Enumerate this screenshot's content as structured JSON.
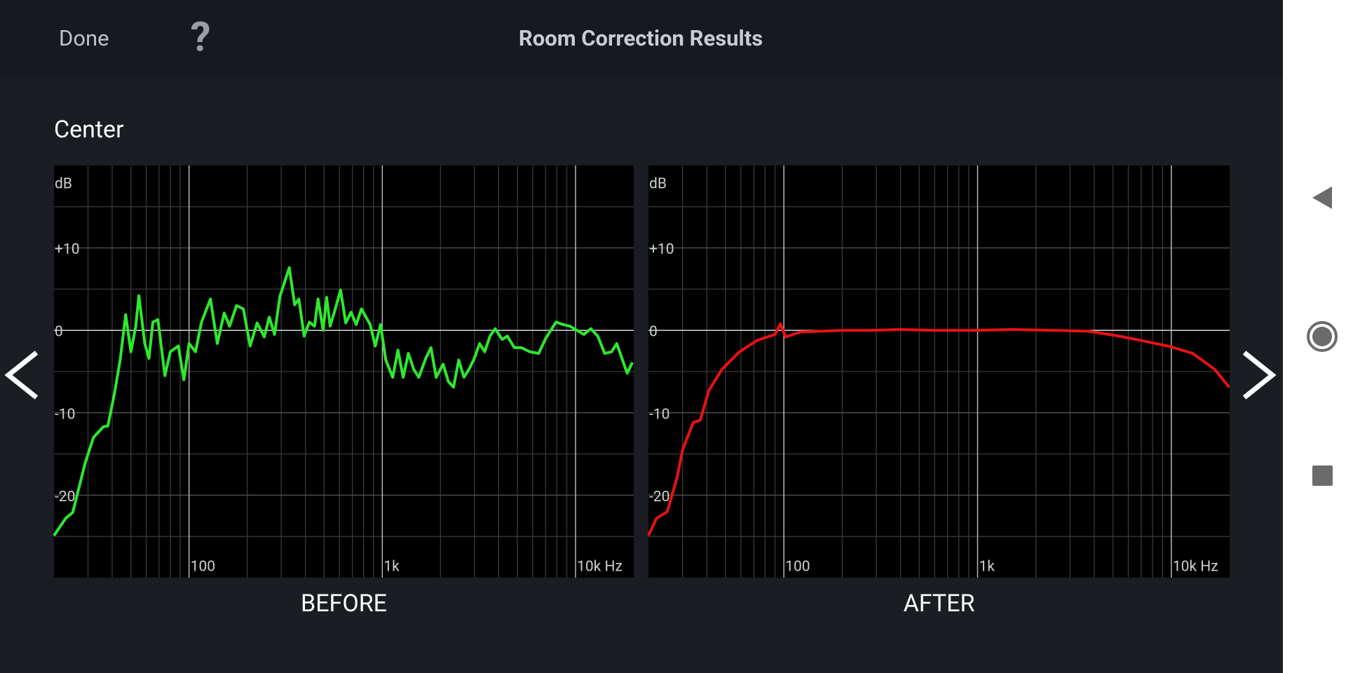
{
  "header": {
    "done": "Done",
    "help": "?",
    "title": "Room Correction Results"
  },
  "section": "Center",
  "chart_data": [
    {
      "type": "line",
      "title": "BEFORE",
      "ylabel": "dB",
      "xscale": "log",
      "xlim": [
        20,
        20000
      ],
      "ylim": [
        -30,
        20
      ],
      "xticks": [
        100,
        {
          "value": 1000,
          "label": "1k"
        },
        {
          "value": 10000,
          "label": "10k Hz"
        }
      ],
      "yticks": [
        {
          "value": 10,
          "label": "+10"
        },
        0,
        -10,
        -20
      ],
      "x_minor_ticks": [
        30,
        40,
        50,
        60,
        70,
        80,
        90,
        200,
        300,
        400,
        500,
        600,
        700,
        800,
        900,
        2000,
        3000,
        4000,
        5000,
        6000,
        7000,
        8000,
        9000
      ],
      "y_minor_ticks": [
        15,
        5,
        -5,
        -15,
        -25
      ],
      "grid": true,
      "x": [
        20,
        23,
        25,
        29,
        32,
        36,
        38,
        41,
        44,
        47,
        50,
        53,
        55,
        59,
        62,
        65,
        69,
        75,
        80,
        88,
        94,
        100,
        108,
        116,
        129,
        140,
        152,
        162,
        176,
        191,
        207,
        225,
        245,
        260,
        277,
        295,
        330,
        352,
        370,
        394,
        419,
        446,
        465,
        494,
        515,
        537,
        571,
        608,
        647,
        689,
        733,
        780,
        865,
        920,
        979,
        1042,
        1132,
        1205,
        1282,
        1364,
        1452,
        1545,
        1678,
        1786,
        1900,
        2064,
        2195,
        2336,
        2486,
        2645,
        2814,
        2994,
        3186,
        3390,
        3607,
        3837,
        4169,
        4436,
        4820,
        5236,
        5808,
        6442,
        6998,
        7446,
        7925,
        8610,
        9354,
        10160,
        11040,
        11990,
        13030,
        14150,
        15350,
        16330,
        17380,
        18490,
        19680
      ],
      "series": [
        {
          "color": "#2ee82e",
          "values": [
            -24.9,
            -22.8,
            -22.1,
            -16.1,
            -13,
            -11.7,
            -11.6,
            -7.8,
            -3.6,
            1.9,
            -2.6,
            0.5,
            4.2,
            -1.6,
            -3.4,
            1,
            1.3,
            -5.5,
            -2.6,
            -1.9,
            -6,
            -1.6,
            -2.6,
            1,
            3.8,
            -1.6,
            2.1,
            0.5,
            3,
            2.6,
            -1.9,
            0.9,
            -0.8,
            1.6,
            -0.5,
            4.1,
            7.6,
            3.1,
            3.8,
            -0.7,
            1,
            0.5,
            3.8,
            0,
            4,
            0.5,
            2.6,
            4.9,
            0.9,
            2.2,
            0.7,
            2.6,
            0.7,
            -1.9,
            0.7,
            -3.6,
            -5.7,
            -2.4,
            -5.7,
            -2.8,
            -4.7,
            -5.7,
            -3.4,
            -2.1,
            -5.7,
            -4.1,
            -6.2,
            -6.9,
            -3.6,
            -5.7,
            -4.7,
            -3.4,
            -1.6,
            -2.6,
            -0.7,
            0.2,
            -1.1,
            -0.7,
            -2.1,
            -2.1,
            -2.6,
            -2.8,
            -1,
            0,
            1,
            0.7,
            0.5,
            0,
            -0.5,
            0.2,
            -0.7,
            -2.8,
            -2.6,
            -1.6,
            -3.4,
            -5.2,
            -3.9
          ]
        }
      ]
    },
    {
      "type": "line",
      "title": "AFTER",
      "ylabel": "dB",
      "xscale": "log",
      "xlim": [
        20,
        20000
      ],
      "ylim": [
        -30,
        20
      ],
      "xticks": [
        100,
        {
          "value": 1000,
          "label": "1k"
        },
        {
          "value": 10000,
          "label": "10k Hz"
        }
      ],
      "yticks": [
        {
          "value": 10,
          "label": "+10"
        },
        0,
        -10,
        -20
      ],
      "x_minor_ticks": [
        30,
        40,
        50,
        60,
        70,
        80,
        90,
        200,
        300,
        400,
        500,
        600,
        700,
        800,
        900,
        2000,
        3000,
        4000,
        5000,
        6000,
        7000,
        8000,
        9000
      ],
      "y_minor_ticks": [
        15,
        5,
        -5,
        -15,
        -25
      ],
      "grid": true,
      "x": [
        20,
        22,
        25,
        28,
        30,
        34,
        37,
        41,
        48,
        59,
        73,
        90,
        96,
        102,
        122,
        200,
        280,
        400,
        600,
        1000,
        1500,
        2500,
        3700,
        5100,
        6900,
        9950,
        12900,
        16700,
        19900
      ],
      "series": [
        {
          "color": "#e81212",
          "values": [
            -24.9,
            -22.8,
            -22,
            -18,
            -14.5,
            -11.2,
            -10.9,
            -7.3,
            -4.7,
            -2.6,
            -1.2,
            -0.5,
            0.8,
            -0.8,
            -0.2,
            0,
            0,
            0.1,
            0,
            0,
            0.1,
            0,
            -0.1,
            -0.6,
            -1.2,
            -2,
            -2.8,
            -4.7,
            -6.9
          ]
        }
      ]
    }
  ]
}
